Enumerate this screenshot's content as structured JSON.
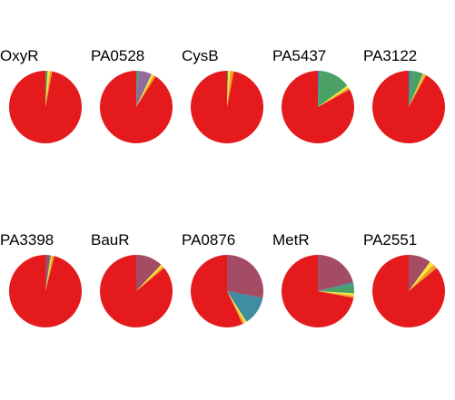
{
  "chart_data": {
    "type": "pie",
    "slice_colors": [
      "#e41a1c",
      "#f29e2a",
      "#f7e83a",
      "#8f6b9e",
      "#4aa065",
      "#3f8da0",
      "#a34c63"
    ],
    "charts": [
      {
        "title": "OxyR",
        "values": [
          97,
          1,
          1,
          0,
          1,
          0,
          0
        ]
      },
      {
        "title": "PA0528",
        "values": [
          91,
          1,
          1,
          6,
          1,
          0,
          0
        ]
      },
      {
        "title": "CysB",
        "values": [
          97,
          1.5,
          1,
          0,
          0.5,
          0,
          0
        ]
      },
      {
        "title": "PA5437",
        "values": [
          83,
          1,
          1,
          0,
          14,
          1,
          0
        ]
      },
      {
        "title": "PA3122",
        "values": [
          92,
          1,
          0.5,
          0,
          5,
          1.5,
          0
        ]
      },
      {
        "title": "PA3398",
        "values": [
          96,
          1,
          0.5,
          0,
          0.5,
          0,
          2
        ]
      },
      {
        "title": "BauR",
        "values": [
          86,
          1,
          1,
          0,
          0,
          0,
          12
        ]
      },
      {
        "title": "PA0876",
        "values": [
          57,
          1,
          1,
          0,
          0,
          13,
          28
        ]
      },
      {
        "title": "MetR",
        "values": [
          72,
          1,
          1,
          0,
          4,
          1,
          21
        ]
      },
      {
        "title": "PA2551",
        "values": [
          86,
          2,
          2,
          0,
          0,
          0,
          10
        ]
      }
    ]
  }
}
